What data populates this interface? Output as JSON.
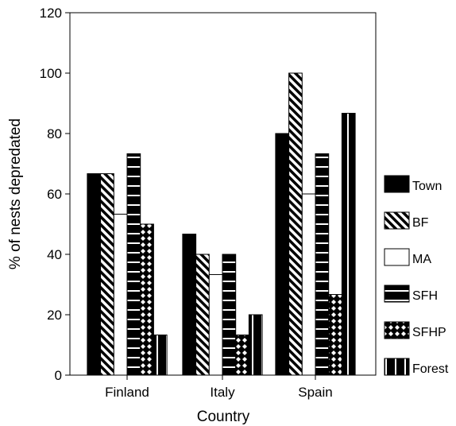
{
  "chart_data": {
    "type": "bar",
    "title": "",
    "xlabel": "Country",
    "ylabel": "% of nests depredated",
    "ylim": [
      0,
      120
    ],
    "yticks": [
      0,
      20,
      40,
      60,
      80,
      100,
      120
    ],
    "categories": [
      "Finland",
      "Italy",
      "Spain"
    ],
    "legend_position": "right",
    "grid": false,
    "series": [
      {
        "name": "Town",
        "pattern": "solid",
        "values": [
          66.7,
          46.7,
          80.0
        ]
      },
      {
        "name": "BF",
        "pattern": "diagonal",
        "values": [
          66.7,
          40.0,
          100.0
        ]
      },
      {
        "name": "MA",
        "pattern": "white",
        "values": [
          53.3,
          33.3,
          60.0
        ]
      },
      {
        "name": "SFH",
        "pattern": "horizontal",
        "values": [
          73.3,
          40.0,
          73.3
        ]
      },
      {
        "name": "SFHP",
        "pattern": "crosshatch",
        "values": [
          50.0,
          13.3,
          26.7
        ]
      },
      {
        "name": "Forest",
        "pattern": "vertical",
        "values": [
          13.3,
          20.0,
          86.7
        ]
      }
    ]
  }
}
